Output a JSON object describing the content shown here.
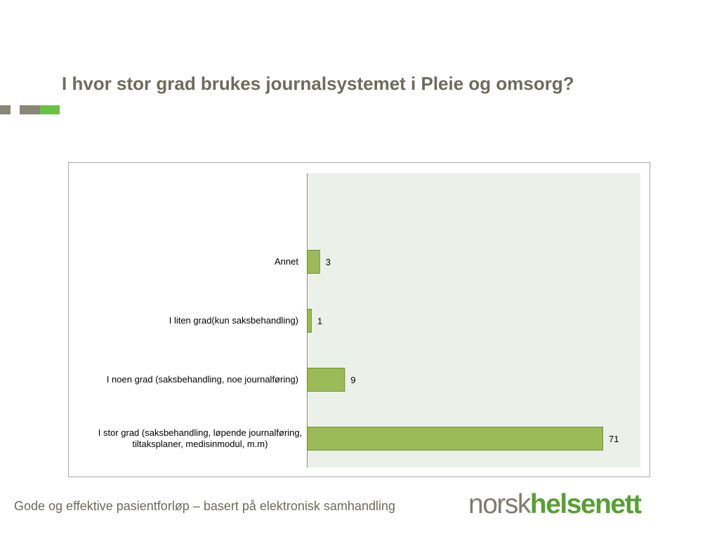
{
  "slide": {
    "title": "I hvor stor grad brukes journalsystemet i Pleie og omsorg?",
    "footer": "Gode og effektive pasientforløp – basert på elektronisk samhandling",
    "logo": {
      "light": "norsk",
      "bold": "helsenett"
    },
    "colors": {
      "title": "#6d6b5d",
      "accent_gray": "#8a8678",
      "accent_green": "#6cbf47",
      "logo_gray": "#7e7c70",
      "logo_green": "#5a9e37"
    }
  },
  "chart_data": {
    "type": "bar",
    "orientation": "horizontal",
    "categories": [
      "Annet",
      "I liten grad(kun saksbehandling)",
      "I noen grad (saksbehandling, noe journalføring)",
      "I stor grad (saksbehandling, løpende journalføring, tiltaksplaner, medisinmodul, m.m)"
    ],
    "category_lines": [
      [
        "Annet"
      ],
      [
        "I liten grad(kun saksbehandling)"
      ],
      [
        "I noen grad (saksbehandling, noe journalføring)"
      ],
      [
        "I stor grad (saksbehandling, løpende journalføring,",
        "tiltaksplaner, medisinmodul, m.m)"
      ]
    ],
    "values": [
      3,
      1,
      9,
      71
    ],
    "data_labels": [
      "3",
      "1",
      "9",
      "71"
    ],
    "xlim": [
      0,
      80
    ],
    "grid": false,
    "legend": "none",
    "bar_color": "#9bbb59",
    "bar_edge_color": "#6f8f35",
    "plot_background": "#ebf1e9"
  }
}
